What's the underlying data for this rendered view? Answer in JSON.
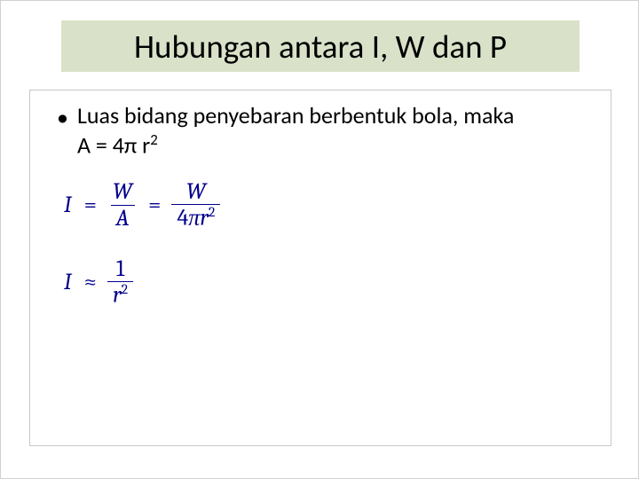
{
  "slide": {
    "title": "Hubungan antara I, W dan P",
    "title_bg": "#d9e2c9",
    "title_color": "#000000",
    "title_fontsize": 37,
    "content_border": "#c8c8c8",
    "bullet_text_line1": "Luas bidang penyebaran berbentuk bola, maka",
    "bullet_text_line2_prefix": "A = 4",
    "bullet_text_line2_pi": "π",
    "bullet_text_line2_var": " r",
    "bullet_text_line2_exp": "2",
    "body_fontsize": 26,
    "body_color": "#000000",
    "formula_color": "#00008b",
    "formula_fontsize": 26,
    "formula1": {
      "lhs": "I",
      "op1": "=",
      "frac1_num": "W",
      "frac1_den": "A",
      "op2": "=",
      "frac2_num": "W",
      "frac2_den_coeff": "4",
      "frac2_den_pi": "π",
      "frac2_den_var": "r",
      "frac2_den_exp": "2"
    },
    "formula2": {
      "lhs": "I",
      "op": "≈",
      "frac_num": "1",
      "frac_den_var": "r",
      "frac_den_exp": "2"
    }
  }
}
